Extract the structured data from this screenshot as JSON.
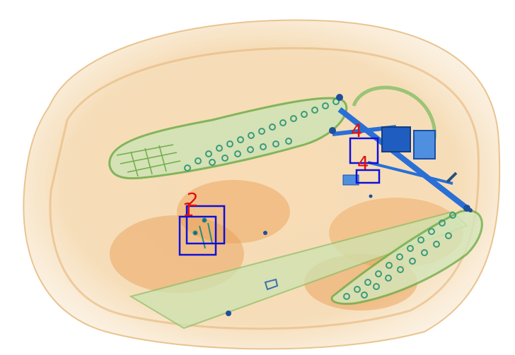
{
  "image": {
    "subject": "x-ray-baggage-scan",
    "detections": [
      {
        "label": "4"
      },
      {
        "label": "4"
      },
      {
        "label": "2"
      },
      {
        "label": "1"
      }
    ],
    "colors": {
      "box_stroke": "#1010d8",
      "label_text": "#e01010",
      "organic": "#e8a85a",
      "inorganic": "#6fae4a",
      "metal": "#2a6fd6",
      "background": "#ffffff"
    }
  }
}
